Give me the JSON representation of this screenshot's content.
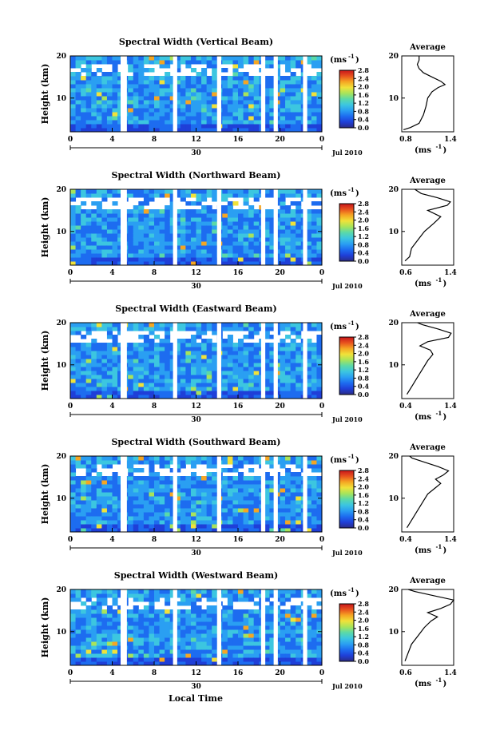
{
  "figure": {
    "xlabel": "Local Time",
    "date_label": "Jul 2010",
    "day_label": "30",
    "colorbar_unit": "(ms",
    "colorbar_unit_exp": "-1",
    "colorbar_ticks": [
      "0.0",
      "0.4",
      "0.8",
      "1.2",
      "1.6",
      "2.0",
      "2.4",
      "2.8"
    ],
    "colorbar_colors": [
      "#2b2b85",
      "#1f3fd8",
      "#1d6cf0",
      "#2a9ff2",
      "#3cc6e0",
      "#5bd9a8",
      "#a8e45a",
      "#f0e23a",
      "#f5a623",
      "#e8521e",
      "#c7151a"
    ],
    "avg_title": "Average",
    "gap_bands_hours": [
      [
        4.8,
        5.4
      ],
      [
        9.8,
        10.2
      ],
      [
        14.0,
        14.4
      ],
      [
        18.2,
        18.6
      ],
      [
        19.4,
        19.8
      ],
      [
        22.2,
        22.6
      ]
    ]
  },
  "chart_data": [
    {
      "type": "heatmap",
      "title": "Spectral Width (Vertical Beam)",
      "xlabel": "Local Time",
      "ylabel": "Height (km)",
      "xlim": [
        0,
        24
      ],
      "ylim": [
        2,
        20
      ],
      "xticks": [
        "0",
        "4",
        "8",
        "12",
        "16",
        "20",
        "0"
      ],
      "yticks": [
        "10",
        "20"
      ],
      "colorbar": {
        "label": "(ms-1)",
        "range": [
          0.0,
          2.8
        ]
      },
      "average": {
        "title": "Average",
        "xlabel": "(ms-1)",
        "xlim": [
          0.8,
          1.4
        ],
        "xticks": [
          "0.8",
          "1.4"
        ],
        "profile": [
          [
            0.82,
            2.5
          ],
          [
            0.9,
            3
          ],
          [
            1.0,
            4
          ],
          [
            1.05,
            6
          ],
          [
            1.08,
            8
          ],
          [
            1.1,
            10
          ],
          [
            1.15,
            11.5
          ],
          [
            1.22,
            12.5
          ],
          [
            1.3,
            13.2
          ],
          [
            1.25,
            14
          ],
          [
            1.15,
            15
          ],
          [
            1.05,
            16
          ],
          [
            1.0,
            17
          ],
          [
            0.98,
            18
          ],
          [
            1.0,
            19
          ],
          [
            1.0,
            20
          ]
        ]
      }
    },
    {
      "type": "heatmap",
      "title": "Spectral Width (Northward Beam)",
      "xlabel": "Local Time",
      "ylabel": "Height (km)",
      "xlim": [
        0,
        24
      ],
      "ylim": [
        2,
        20
      ],
      "xticks": [
        "0",
        "4",
        "8",
        "12",
        "16",
        "20",
        "0"
      ],
      "yticks": [
        "10",
        "20"
      ],
      "colorbar": {
        "label": "(ms-1)",
        "range": [
          0.0,
          2.8
        ]
      },
      "average": {
        "title": "Average",
        "xlabel": "(ms-1)",
        "xlim": [
          0.6,
          1.4
        ],
        "xticks": [
          "0.6",
          "1.4"
        ],
        "profile": [
          [
            0.65,
            3
          ],
          [
            0.72,
            4
          ],
          [
            0.75,
            6
          ],
          [
            0.85,
            8
          ],
          [
            0.95,
            10
          ],
          [
            1.1,
            12
          ],
          [
            1.2,
            13.5
          ],
          [
            1.0,
            15
          ],
          [
            1.3,
            16.2
          ],
          [
            1.35,
            17
          ],
          [
            1.15,
            18
          ],
          [
            0.9,
            19
          ],
          [
            0.8,
            20
          ]
        ]
      }
    },
    {
      "type": "heatmap",
      "title": "Spectral Width (Eastward Beam)",
      "xlabel": "Local Time",
      "ylabel": "Height (km)",
      "xlim": [
        0,
        24
      ],
      "ylim": [
        2,
        20
      ],
      "xticks": [
        "0",
        "4",
        "8",
        "12",
        "16",
        "20",
        "0"
      ],
      "yticks": [
        "10",
        "20"
      ],
      "colorbar": {
        "label": "(ms-1)",
        "range": [
          0.0,
          2.8
        ]
      },
      "average": {
        "title": "Average",
        "xlabel": "(ms-1)",
        "xlim": [
          0.4,
          1.4
        ],
        "xticks": [
          "0.4",
          "1.4"
        ],
        "profile": [
          [
            0.5,
            3
          ],
          [
            0.6,
            5
          ],
          [
            0.7,
            7
          ],
          [
            0.8,
            9
          ],
          [
            0.9,
            11
          ],
          [
            1.0,
            12.5
          ],
          [
            0.95,
            13.5
          ],
          [
            0.75,
            14.5
          ],
          [
            0.9,
            15.5
          ],
          [
            1.3,
            16.5
          ],
          [
            1.35,
            17.5
          ],
          [
            1.1,
            18.5
          ],
          [
            0.8,
            19.5
          ],
          [
            0.7,
            20
          ]
        ]
      }
    },
    {
      "type": "heatmap",
      "title": "Spectral Width (Southward Beam)",
      "xlabel": "Local Time",
      "ylabel": "Height (km)",
      "xlim": [
        0,
        24
      ],
      "ylim": [
        2,
        20
      ],
      "xticks": [
        "0",
        "4",
        "8",
        "12",
        "16",
        "20",
        "0"
      ],
      "yticks": [
        "10",
        "20"
      ],
      "colorbar": {
        "label": "(ms-1)",
        "range": [
          0.0,
          2.8
        ]
      },
      "average": {
        "title": "Average",
        "xlabel": "(ms-1)",
        "xlim": [
          0.4,
          1.4
        ],
        "xticks": [
          "0.4",
          "1.4"
        ],
        "profile": [
          [
            0.5,
            3
          ],
          [
            0.6,
            5
          ],
          [
            0.7,
            7
          ],
          [
            0.8,
            9
          ],
          [
            0.9,
            11
          ],
          [
            1.05,
            12.5
          ],
          [
            1.15,
            13.5
          ],
          [
            1.05,
            14.5
          ],
          [
            1.2,
            15.5
          ],
          [
            1.3,
            16.5
          ],
          [
            1.1,
            17.5
          ],
          [
            0.85,
            18.5
          ],
          [
            0.6,
            19.5
          ],
          [
            0.55,
            20
          ]
        ]
      }
    },
    {
      "type": "heatmap",
      "title": "Spectral Width (Westward Beam)",
      "xlabel": "Local Time",
      "ylabel": "Height (km)",
      "xlim": [
        0,
        24
      ],
      "ylim": [
        2,
        20
      ],
      "xticks": [
        "0",
        "4",
        "8",
        "12",
        "16",
        "20",
        "0"
      ],
      "yticks": [
        "10",
        "20"
      ],
      "colorbar": {
        "label": "(ms-1)",
        "range": [
          0.0,
          2.8
        ]
      },
      "average": {
        "title": "Average",
        "xlabel": "(ms-1)",
        "xlim": [
          0.6,
          1.4
        ],
        "xticks": [
          "0.6",
          "1.4"
        ],
        "profile": [
          [
            0.65,
            3
          ],
          [
            0.7,
            5
          ],
          [
            0.75,
            7
          ],
          [
            0.85,
            9
          ],
          [
            0.95,
            11
          ],
          [
            1.05,
            12.5
          ],
          [
            1.15,
            13.5
          ],
          [
            1.0,
            14.5
          ],
          [
            1.2,
            15.5
          ],
          [
            1.35,
            16.5
          ],
          [
            1.4,
            17.5
          ],
          [
            1.1,
            18.5
          ],
          [
            0.8,
            19.5
          ],
          [
            0.7,
            20
          ]
        ]
      }
    }
  ]
}
